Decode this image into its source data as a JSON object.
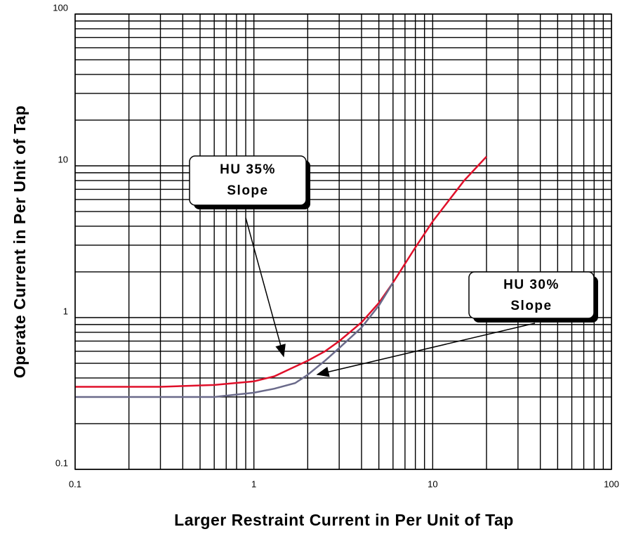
{
  "chart_data": {
    "type": "line",
    "x_label": "Larger Restraint Current in Per Unit of Tap",
    "y_label": "Operate Current in Per Unit of Tap",
    "log_x": true,
    "log_y": true,
    "grid": true,
    "xlim": [
      0.1,
      100
    ],
    "ylim": [
      0.1,
      100
    ],
    "xticks": [
      0.1,
      1,
      10,
      100
    ],
    "yticks": [
      0.1,
      1,
      10,
      100
    ],
    "xminor_ticks": [
      0.2,
      0.3,
      0.4,
      0.5,
      0.6,
      0.7,
      0.8,
      0.9,
      2,
      3,
      4,
      5,
      6,
      7,
      8,
      9,
      20,
      30,
      40,
      50,
      60,
      70,
      80,
      90
    ],
    "yminor_ticks": [
      0.2,
      0.3,
      0.4,
      0.5,
      0.6,
      0.7,
      0.8,
      0.9,
      2,
      3,
      4,
      5,
      6,
      7,
      8,
      9,
      20,
      30,
      40,
      50,
      60,
      70,
      80,
      90
    ],
    "series": [
      {
        "name": "HU 35% Slope",
        "color": "#e0102a",
        "x": [
          0.1,
          0.3,
          0.6,
          1,
          1.3,
          1.6,
          2,
          2.5,
          3,
          4,
          5,
          6,
          8,
          10,
          15,
          20
        ],
        "values": [
          0.35,
          0.35,
          0.36,
          0.38,
          0.41,
          0.46,
          0.52,
          0.6,
          0.7,
          0.93,
          1.25,
          1.7,
          2.9,
          4.3,
          8,
          11.5
        ]
      },
      {
        "name": "HU 30% Slope",
        "color": "#6a6a8a",
        "x": [
          0.1,
          0.6,
          1,
          1.3,
          1.7,
          2,
          2.5,
          3,
          4,
          5,
          6
        ],
        "values": [
          0.3,
          0.3,
          0.32,
          0.34,
          0.37,
          0.42,
          0.52,
          0.63,
          0.86,
          1.2,
          1.7
        ]
      }
    ],
    "annotations": [
      {
        "lines": [
          "HU 35%",
          "Slope"
        ]
      },
      {
        "lines": [
          "HU 30%",
          "Slope"
        ]
      }
    ]
  }
}
